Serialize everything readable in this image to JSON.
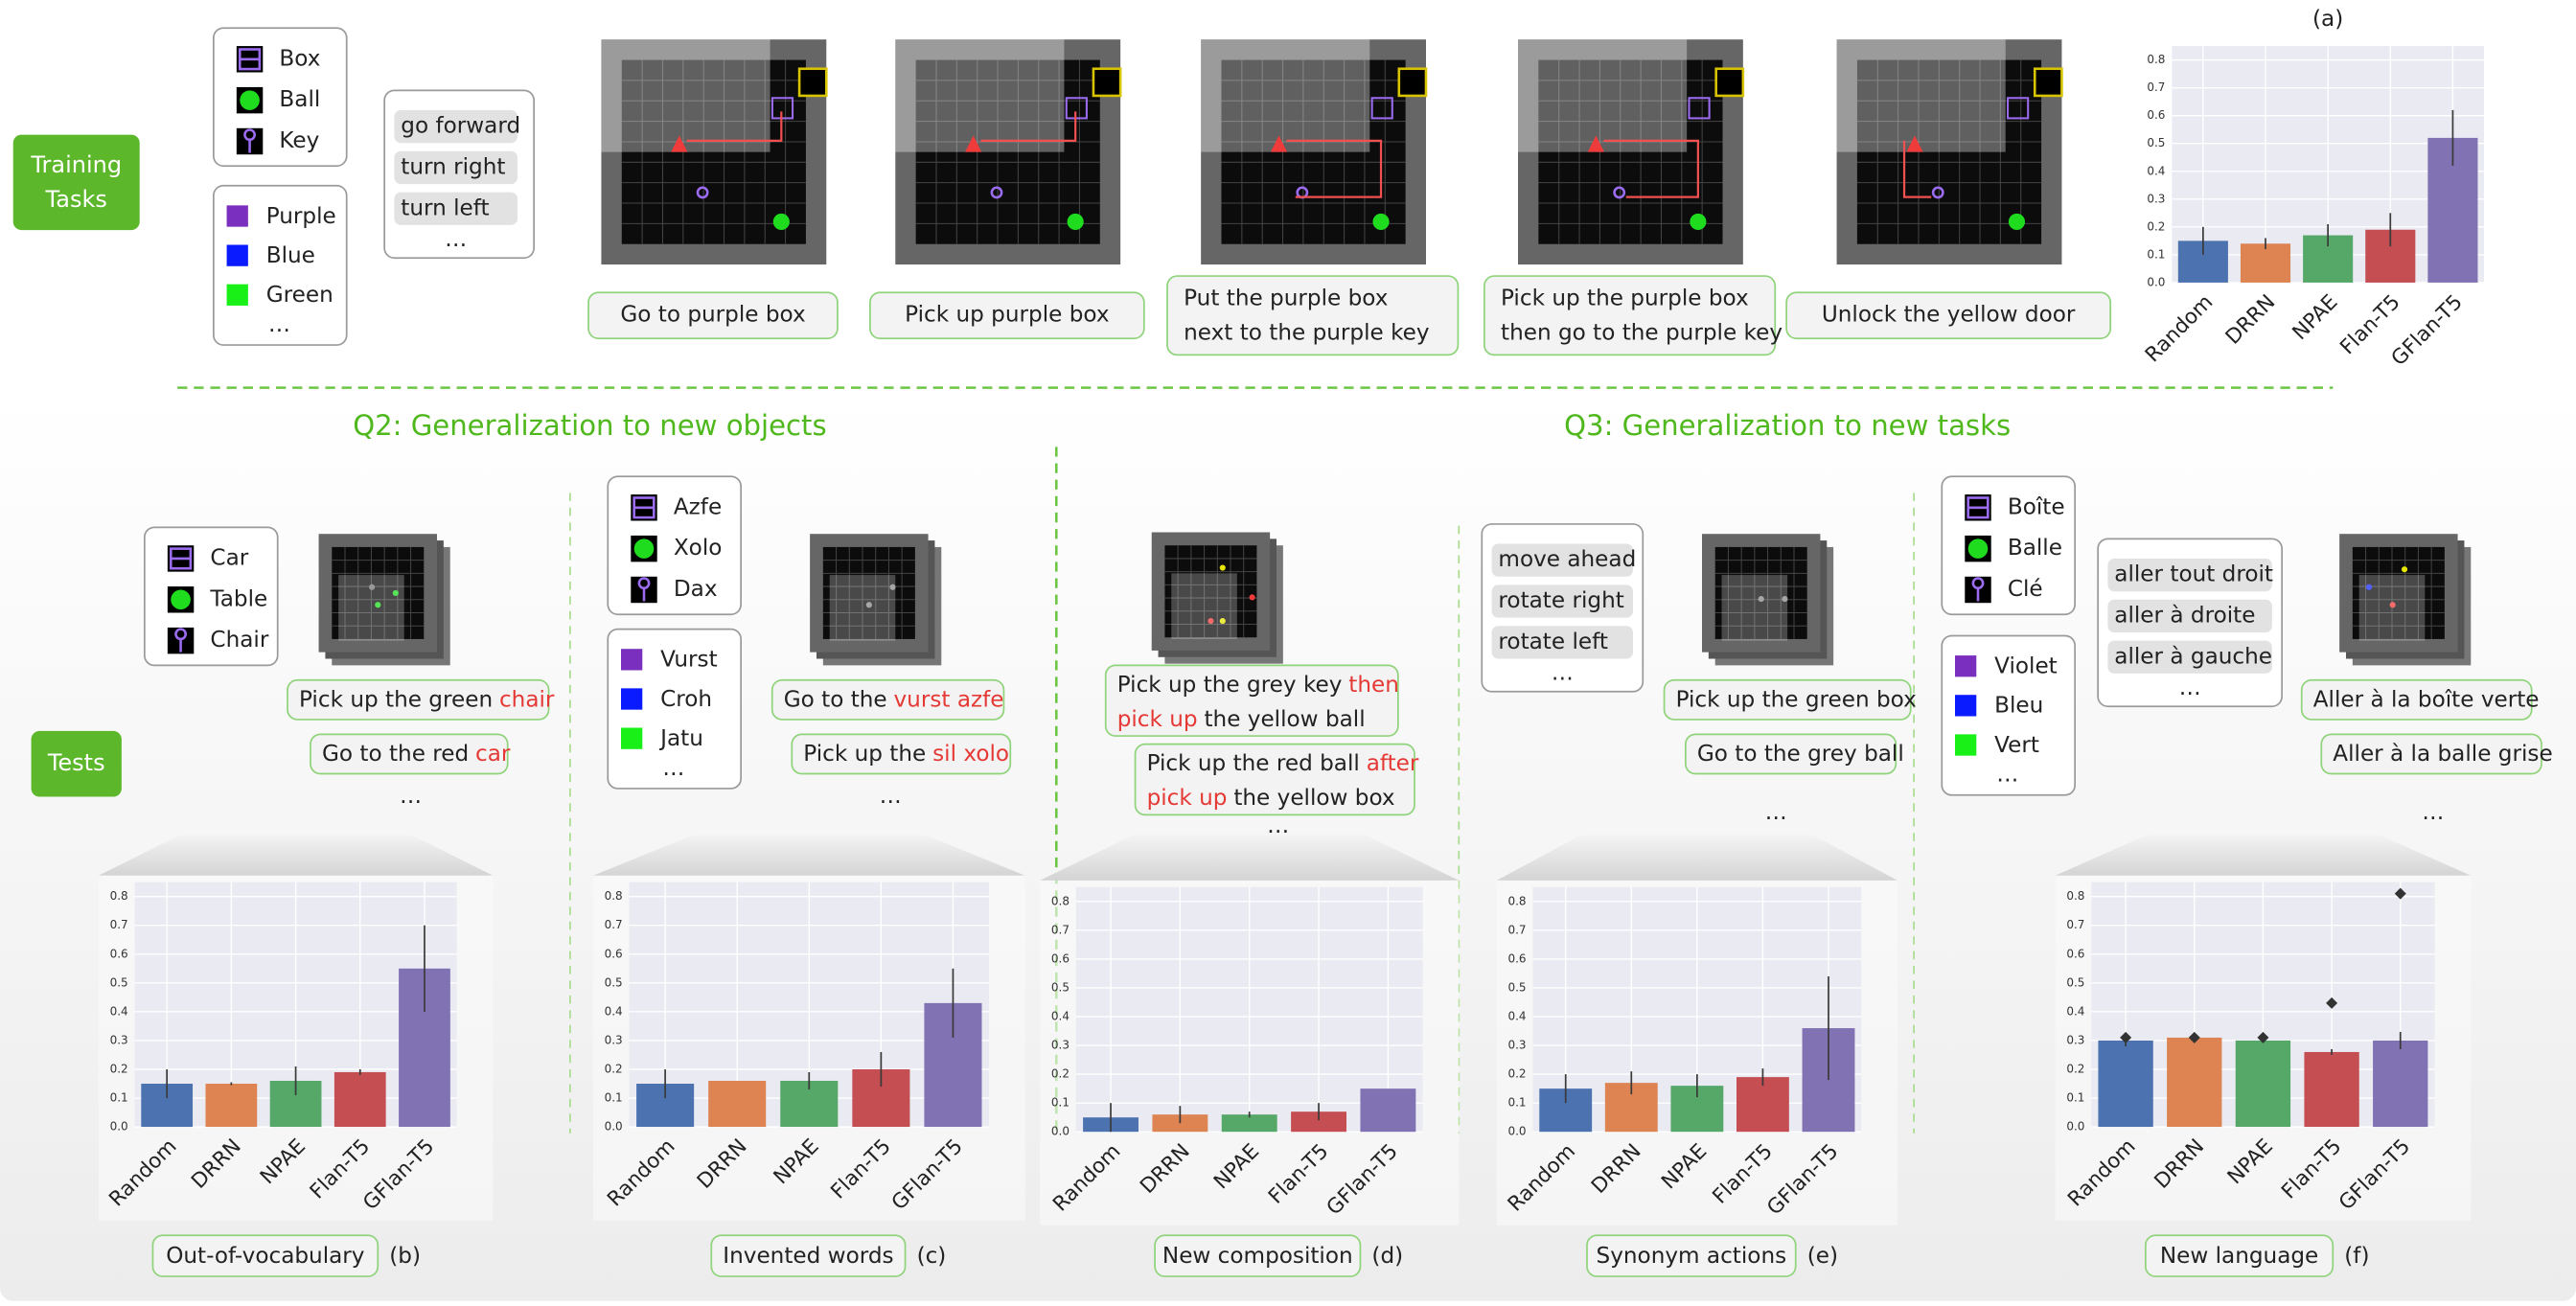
{
  "training": {
    "label": [
      "Training",
      "Tasks"
    ],
    "objects": [
      "Box",
      "Ball",
      "Key"
    ],
    "colors": [
      "Purple",
      "Blue",
      "Green",
      "…"
    ],
    "actions": [
      "go forward",
      "turn right",
      "turn left",
      "…"
    ],
    "tasks": [
      [
        "Go to purple box"
      ],
      [
        "Pick up purple box"
      ],
      [
        "Put the purple box",
        "next to the purple key"
      ],
      [
        "Pick up the purple box",
        "then go to the purple key"
      ],
      [
        "Unlock the yellow door"
      ]
    ]
  },
  "headings": [
    "Q2: Generalization to new objects",
    "Q3: Generalization to new tasks"
  ],
  "tests_label": "Tests",
  "panels": [
    {
      "objects": [
        "Car",
        "Table",
        "Chair"
      ],
      "instructions": [
        {
          "lines": [
            [
              {
                "text": "Pick up the green"
              },
              {
                "text": "chair",
                "red": true
              }
            ]
          ]
        },
        {
          "lines": [
            [
              {
                "text": "Go to the red"
              },
              {
                "text": "car",
                "red": true
              }
            ]
          ]
        }
      ],
      "more": "…"
    },
    {
      "objects": [
        "Azfe",
        "Xolo",
        "Dax"
      ],
      "colors": [
        "Vurst",
        "Croh",
        "Jatu",
        "…"
      ],
      "instructions": [
        {
          "lines": [
            [
              {
                "text": "Go to the"
              },
              {
                "text": "vurst azfe",
                "red": true
              }
            ]
          ]
        },
        {
          "lines": [
            [
              {
                "text": "Pick up the"
              },
              {
                "text": "sil xolo",
                "red": true
              }
            ]
          ]
        }
      ],
      "more": "…"
    },
    {
      "instructions": [
        {
          "lines": [
            [
              {
                "text": "Pick up the grey key"
              },
              {
                "text": "then",
                "red": true
              }
            ],
            [
              {
                "text": "pick up",
                "red": true
              },
              {
                "text": "the yellow ball"
              }
            ]
          ]
        },
        {
          "lines": [
            [
              {
                "text": "Pick up the red ball"
              },
              {
                "text": "after",
                "red": true
              }
            ],
            [
              {
                "text": "pick up",
                "red": true
              },
              {
                "text": "the yellow box"
              }
            ]
          ]
        }
      ],
      "more": "…"
    },
    {
      "actions": [
        "move ahead",
        "rotate right",
        "rotate left",
        "…"
      ],
      "instructions": [
        {
          "lines": [
            [
              {
                "text": "Pick up the green box"
              }
            ]
          ]
        },
        {
          "lines": [
            [
              {
                "text": "Go to the grey ball"
              }
            ]
          ]
        }
      ],
      "more": "…"
    },
    {
      "objects": [
        "Boîte",
        "Balle",
        "Clé"
      ],
      "colors": [
        "Violet",
        "Bleu",
        "Vert",
        "…"
      ],
      "actions": [
        "aller tout droit",
        "aller à droite",
        "aller à gauche",
        "…"
      ],
      "instructions": [
        {
          "lines": [
            [
              {
                "text": "Aller à la boîte verte"
              }
            ]
          ]
        },
        {
          "lines": [
            [
              {
                "text": "Aller à la balle grise"
              }
            ]
          ]
        }
      ],
      "more": "…"
    }
  ],
  "chart_data": [
    {
      "type": "bar",
      "title": "(a)",
      "categories": [
        "Random",
        "DRRN",
        "NPAE",
        "Flan-T5",
        "GFlan-T5"
      ],
      "values": [
        0.15,
        0.14,
        0.17,
        0.19,
        0.52
      ],
      "errors": [
        0.05,
        0.02,
        0.04,
        0.06,
        0.1
      ],
      "colors": [
        "#4c72b0",
        "#dd8452",
        "#55a868",
        "#c44e52",
        "#8172b3"
      ],
      "ylim": [
        0,
        0.85
      ],
      "yticks": [
        {
          "value": 0,
          "label": "0.0"
        },
        0.1,
        0.2,
        0.3,
        0.4,
        0.5,
        0.6,
        0.7,
        0.8
      ],
      "grid": true
    },
    {
      "type": "bar",
      "title": "(b)",
      "caption": "Out-of-vocabulary",
      "categories": [
        "Random",
        "DRRN",
        "NPAE",
        "Flan-T5",
        "GFlan-T5"
      ],
      "values": [
        0.15,
        0.15,
        0.16,
        0.19,
        0.55
      ],
      "errors": [
        0.05,
        0.005,
        0.05,
        0.01,
        0.15
      ],
      "colors": [
        "#4c72b0",
        "#dd8452",
        "#55a868",
        "#c44e52",
        "#8172b3"
      ],
      "ylim": [
        0,
        0.85
      ],
      "yticks": [
        {
          "value": 0,
          "label": "0.0"
        },
        0.1,
        0.2,
        0.3,
        0.4,
        0.5,
        0.6,
        0.7,
        0.8
      ],
      "grid": true
    },
    {
      "type": "bar",
      "title": "(c)",
      "caption": "Invented words",
      "categories": [
        "Random",
        "DRRN",
        "NPAE",
        "Flan-T5",
        "GFlan-T5"
      ],
      "values": [
        0.15,
        0.16,
        0.16,
        0.2,
        0.43
      ],
      "errors": [
        0.05,
        0,
        0.03,
        0.06,
        0.12
      ],
      "colors": [
        "#4c72b0",
        "#dd8452",
        "#55a868",
        "#c44e52",
        "#8172b3"
      ],
      "ylim": [
        0,
        0.85
      ],
      "yticks": [
        {
          "value": 0,
          "label": "0.0"
        },
        0.1,
        0.2,
        0.3,
        0.4,
        0.5,
        0.6,
        0.7,
        0.8
      ],
      "grid": true
    },
    {
      "type": "bar",
      "title": "(d)",
      "caption": "New composition",
      "categories": [
        "Random",
        "DRRN",
        "NPAE",
        "Flan-T5",
        "GFlan-T5"
      ],
      "values": [
        0.05,
        0.06,
        0.06,
        0.07,
        0.15
      ],
      "errors": [
        0.05,
        0.03,
        0.01,
        0.03,
        0
      ],
      "colors": [
        "#4c72b0",
        "#dd8452",
        "#55a868",
        "#c44e52",
        "#8172b3"
      ],
      "ylim": [
        0,
        0.85
      ],
      "yticks": [
        {
          "value": 0,
          "label": "0.0"
        },
        0.1,
        0.2,
        0.3,
        0.4,
        0.5,
        0.6,
        0.7,
        0.8
      ],
      "grid": true
    },
    {
      "type": "bar",
      "title": "(e)",
      "caption": "Synonym actions",
      "categories": [
        "Random",
        "DRRN",
        "NPAE",
        "Flan-T5",
        "GFlan-T5"
      ],
      "values": [
        0.15,
        0.17,
        0.16,
        0.19,
        0.36
      ],
      "errors": [
        0.05,
        0.04,
        0.04,
        0.03,
        0.18
      ],
      "colors": [
        "#4c72b0",
        "#dd8452",
        "#55a868",
        "#c44e52",
        "#8172b3"
      ],
      "ylim": [
        0,
        0.85
      ],
      "yticks": [
        {
          "value": 0,
          "label": "0.0"
        },
        0.1,
        0.2,
        0.3,
        0.4,
        0.5,
        0.6,
        0.7,
        0.8
      ],
      "grid": true
    },
    {
      "type": "bar",
      "title": "(f)",
      "caption": "New language",
      "categories": [
        "Random",
        "DRRN",
        "NPAE",
        "Flan-T5",
        "GFlan-T5"
      ],
      "values": [
        0.3,
        0.31,
        0.3,
        0.26,
        0.3
      ],
      "errors": [
        0.02,
        0.01,
        0,
        0.01,
        0.03
      ],
      "markers": [
        0.31,
        0.31,
        0.31,
        0.43,
        0.81
      ],
      "marker_color": "#333333",
      "colors": [
        "#4c72b0",
        "#dd8452",
        "#55a868",
        "#c44e52",
        "#8172b3"
      ],
      "ylim": [
        0,
        0.85
      ],
      "yticks": [
        {
          "value": 0,
          "label": "0.0"
        },
        0.1,
        0.2,
        0.3,
        0.4,
        0.5,
        0.6,
        0.7,
        0.8
      ],
      "grid": true
    }
  ]
}
